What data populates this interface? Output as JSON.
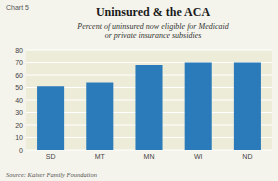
{
  "chart_data": {
    "type": "bar",
    "title": "Uninsured & the ACA",
    "subtitle": "Percent of uninsured now eligible for Medicaid\nor private insurance subsidies",
    "chart_label": "Chart 5",
    "source": "Source: Kaiser Family Foundation",
    "categories": [
      "SD",
      "MT",
      "MN",
      "WI",
      "ND"
    ],
    "values": [
      51,
      54,
      68,
      70,
      70
    ],
    "color": "#2b7bba",
    "ylim": [
      0,
      80
    ],
    "yticks": [
      0,
      10,
      20,
      30,
      40,
      50,
      60,
      70,
      80
    ],
    "grid": true
  }
}
